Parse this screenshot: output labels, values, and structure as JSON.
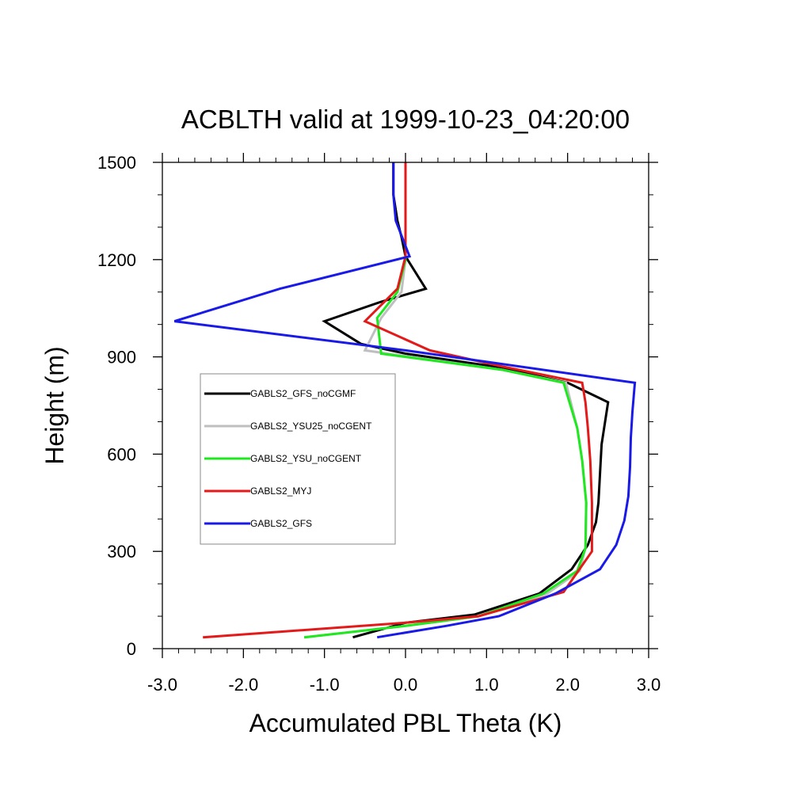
{
  "chart_data": {
    "type": "line",
    "title": "ACBLTH valid at 1999-10-23_04:20:00",
    "xlabel": "Accumulated PBL Theta (K)",
    "ylabel": "Height (m)",
    "xlim": [
      -3.0,
      3.0
    ],
    "ylim": [
      0,
      1500
    ],
    "xticks": [
      "-3.0",
      "-2.0",
      "-1.0",
      "0.0",
      "1.0",
      "2.0",
      "3.0"
    ],
    "yticks": [
      "0",
      "300",
      "600",
      "900",
      "1200",
      "1500"
    ],
    "legend_position": "left-center",
    "series": [
      {
        "name": "GABLS2_GFS_noCGMF",
        "color": "#000000",
        "x": [
          -0.65,
          0.0,
          0.85,
          1.65,
          2.05,
          2.25,
          2.35,
          2.38,
          2.42,
          2.5,
          2.0,
          1.1,
          0.0,
          -0.55,
          -1.0,
          -0.3,
          0.25,
          0.0,
          -0.05,
          -0.1,
          -0.15,
          -0.15
        ],
        "y": [
          35,
          80,
          105,
          170,
          245,
          320,
          390,
          450,
          630,
          760,
          820,
          870,
          910,
          940,
          1010,
          1070,
          1110,
          1210,
          1270,
          1320,
          1400,
          1500
        ]
      },
      {
        "name": "GABLS2_YSU25_noCGENT",
        "color": "#bfbfbf",
        "x": [
          -1.25,
          0.0,
          0.9,
          1.75,
          2.15,
          2.22,
          2.23,
          2.18,
          2.12,
          1.98,
          1.2,
          -0.5,
          -0.3,
          -0.05,
          0.0,
          0.0,
          0.0,
          0.0
        ],
        "y": [
          35,
          70,
          100,
          170,
          240,
          310,
          450,
          580,
          680,
          820,
          860,
          920,
          1020,
          1100,
          1200,
          1300,
          1400,
          1500
        ]
      },
      {
        "name": "GABLS2_YSU_noCGENT",
        "color": "#1ee81e",
        "x": [
          -1.25,
          0.0,
          0.9,
          1.7,
          2.12,
          2.22,
          2.23,
          2.18,
          2.12,
          1.95,
          1.2,
          -0.3,
          -0.35,
          -0.1,
          0.0,
          0.0,
          0.0,
          0.0
        ],
        "y": [
          35,
          70,
          100,
          170,
          240,
          310,
          450,
          580,
          680,
          820,
          860,
          910,
          1020,
          1100,
          1200,
          1300,
          1400,
          1500
        ]
      },
      {
        "name": "GABLS2_MYJ",
        "color": "#e41a1a",
        "x": [
          -2.5,
          0.0,
          0.9,
          1.95,
          2.3,
          2.3,
          2.28,
          2.25,
          2.22,
          2.18,
          1.2,
          0.3,
          -0.5,
          -0.1,
          0.0,
          0.0,
          0.0
        ],
        "y": [
          35,
          80,
          100,
          175,
          300,
          450,
          580,
          680,
          760,
          820,
          870,
          920,
          1010,
          1110,
          1210,
          1400,
          1500
        ]
      },
      {
        "name": "GABLS2_GFS",
        "color": "#1a1ae8",
        "x": [
          -0.35,
          0.5,
          1.15,
          1.85,
          2.4,
          2.6,
          2.7,
          2.75,
          2.77,
          2.78,
          2.8,
          2.83,
          0.0,
          -2.85,
          -1.55,
          0.05,
          -0.12,
          -0.15,
          -0.15
        ],
        "y": [
          35,
          70,
          100,
          170,
          245,
          320,
          395,
          470,
          560,
          650,
          730,
          820,
          920,
          1010,
          1110,
          1210,
          1320,
          1400,
          1500
        ]
      }
    ]
  }
}
